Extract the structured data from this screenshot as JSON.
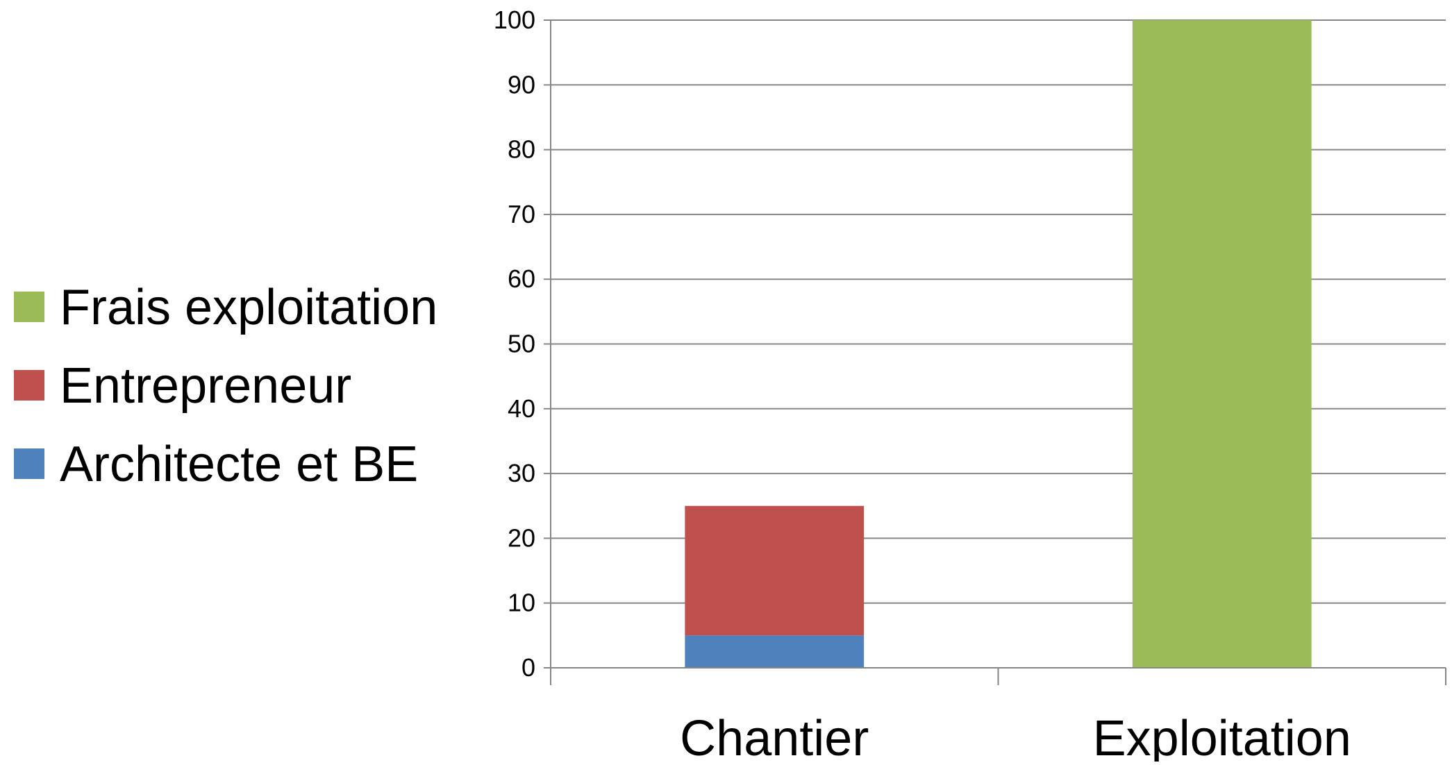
{
  "chart_data": {
    "type": "bar",
    "stacked": true,
    "title": "",
    "xlabel": "",
    "ylabel": "",
    "categories": [
      "Chantier",
      "Exploitation"
    ],
    "series": [
      {
        "name": "Architecte et BE",
        "values": [
          5,
          0
        ],
        "color": "#4F81BD"
      },
      {
        "name": "Entrepreneur",
        "values": [
          20,
          0
        ],
        "color": "#C0504D"
      },
      {
        "name": "Frais exploitation",
        "values": [
          0,
          100
        ],
        "color": "#9BBB59"
      }
    ],
    "ylim": [
      0,
      100
    ],
    "yticks": [
      0,
      10,
      20,
      30,
      40,
      50,
      60,
      70,
      80,
      90,
      100
    ],
    "grid": true,
    "legend_position": "left",
    "legend_order": [
      "Frais exploitation",
      "Entrepreneur",
      "Architecte et BE"
    ],
    "axis_color": "#868686"
  }
}
